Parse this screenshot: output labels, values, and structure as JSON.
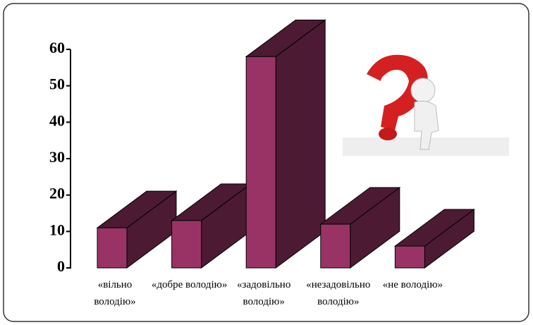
{
  "chart_data": {
    "type": "bar3d",
    "categories": [
      "«вільно володію»",
      "«добре володію»",
      "«задовільно володію»",
      "«незадовільно володію»",
      "«не володію»"
    ],
    "values": [
      11,
      13,
      58,
      12,
      6
    ],
    "color": "#993366",
    "side_color": "#4d1a33",
    "ylim": [
      0,
      60
    ],
    "yticks": [
      0,
      10,
      20,
      30,
      40,
      50,
      60
    ]
  }
}
